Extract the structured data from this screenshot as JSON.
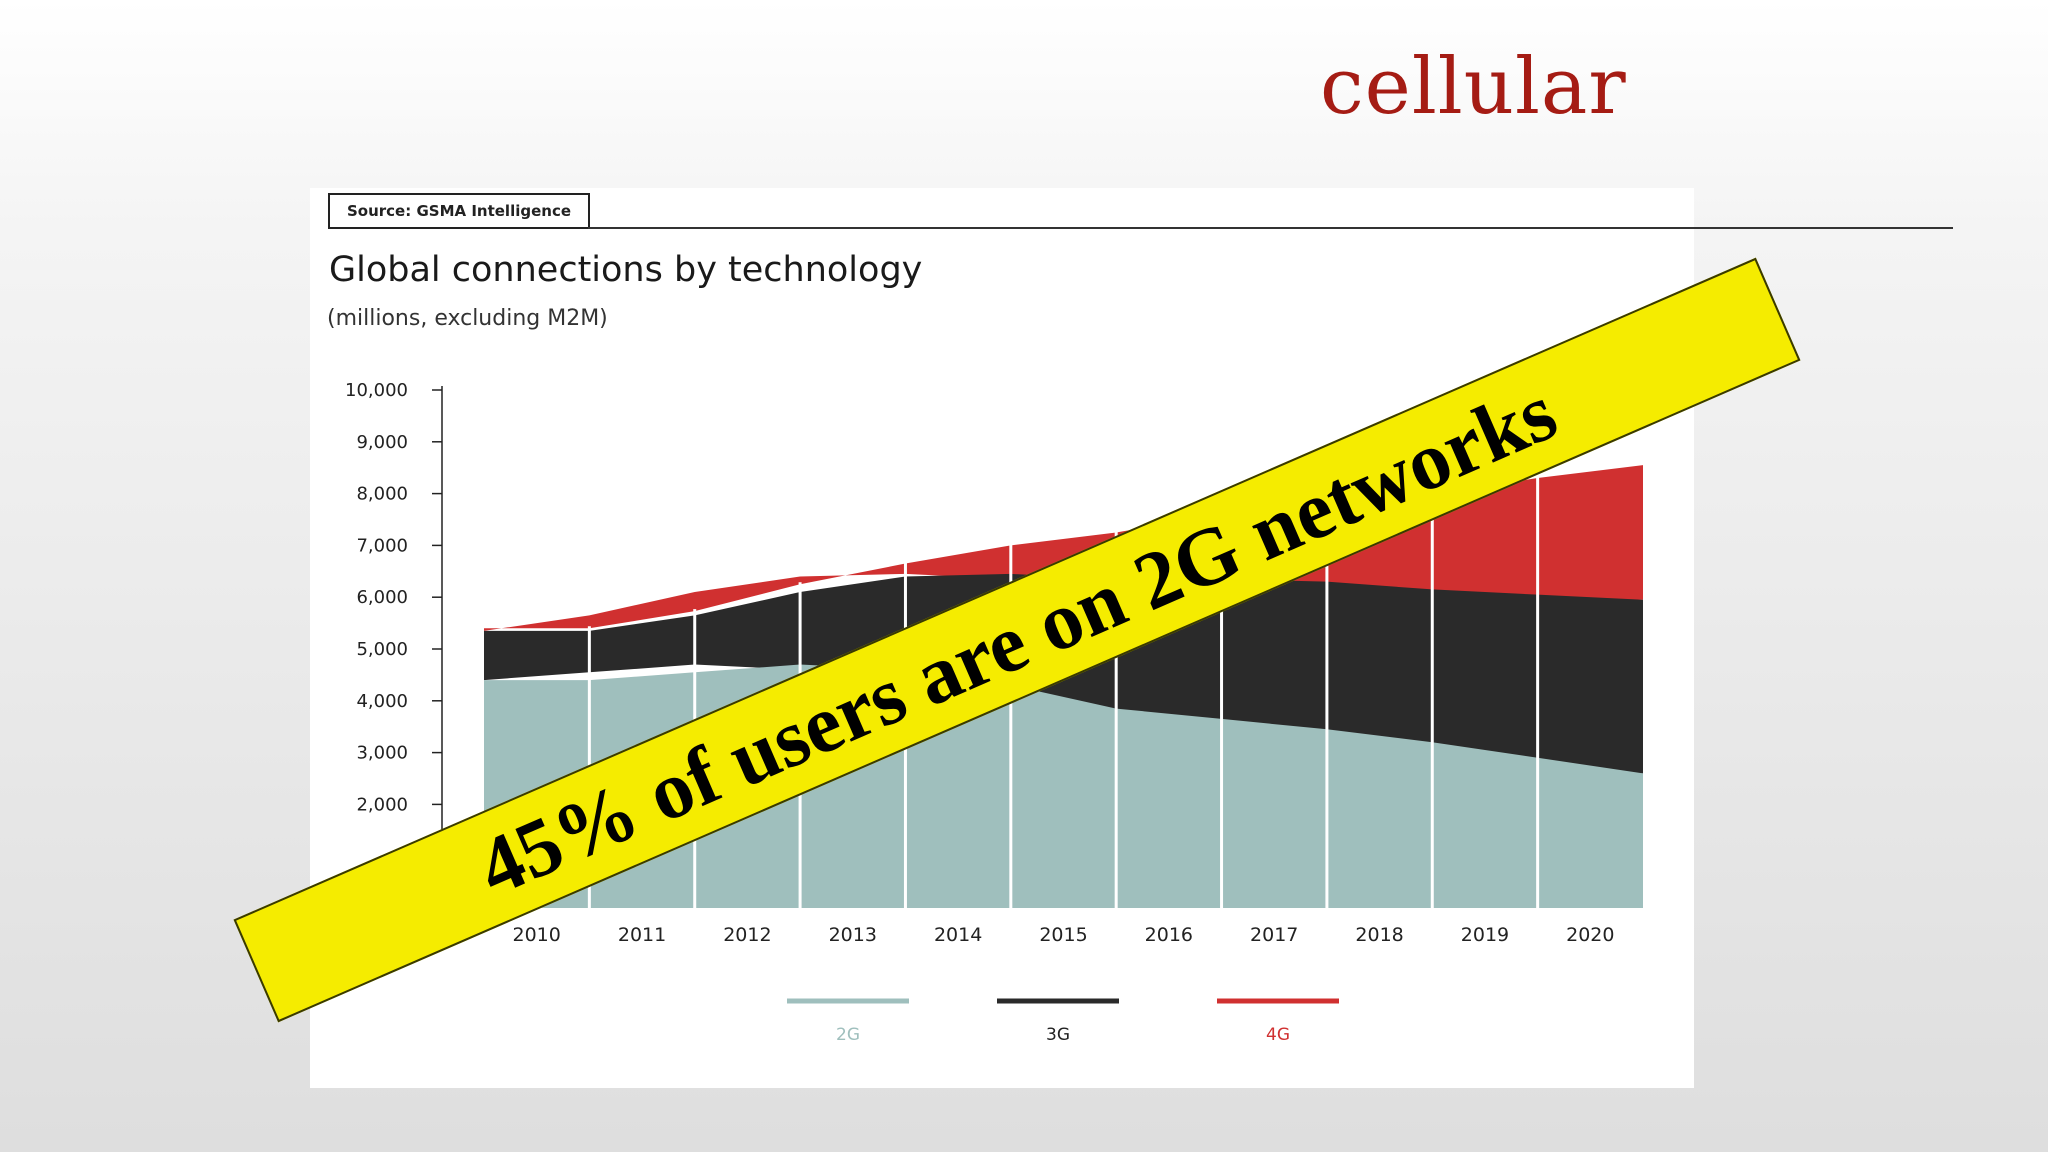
{
  "slide": {
    "title": "cellular"
  },
  "banner": {
    "text": "45% of users are on 2G networks",
    "color": "#f5ec00"
  },
  "chart_data": {
    "type": "area",
    "stacked": true,
    "source": "Source: GSMA Intelligence",
    "title": "Global connections by technology",
    "subtitle": "(millions, excluding M2M)",
    "x": [
      "2010",
      "2011",
      "2012",
      "2013",
      "2014",
      "2015",
      "2016",
      "2017",
      "2018",
      "2019",
      "2020"
    ],
    "ylim": [
      0,
      10000
    ],
    "yticks": [
      2000,
      3000,
      4000,
      5000,
      6000,
      7000,
      8000,
      9000,
      10000
    ],
    "ytick_labels": [
      "2,000",
      "3,000",
      "4,000",
      "5,000",
      "6,000",
      "7,000",
      "8,000",
      "9,000",
      "10,000"
    ],
    "series": [
      {
        "name": "2G",
        "color": "#9fbfbd",
        "values": [
          4400,
          4550,
          4700,
          4600,
          4300,
          3850,
          3650,
          3450,
          3200,
          2900,
          2600
        ]
      },
      {
        "name": "3G",
        "color": "#2a2a2a",
        "values": [
          950,
          1100,
          1400,
          1800,
          2150,
          2500,
          2700,
          2850,
          2950,
          3150,
          3350
        ]
      },
      {
        "name": "4G",
        "color": "#d03030",
        "values": [
          50,
          80,
          150,
          250,
          550,
          900,
          1250,
          1550,
          1850,
          2250,
          2600
        ]
      }
    ],
    "legend_position": "bottom",
    "grid": false
  }
}
